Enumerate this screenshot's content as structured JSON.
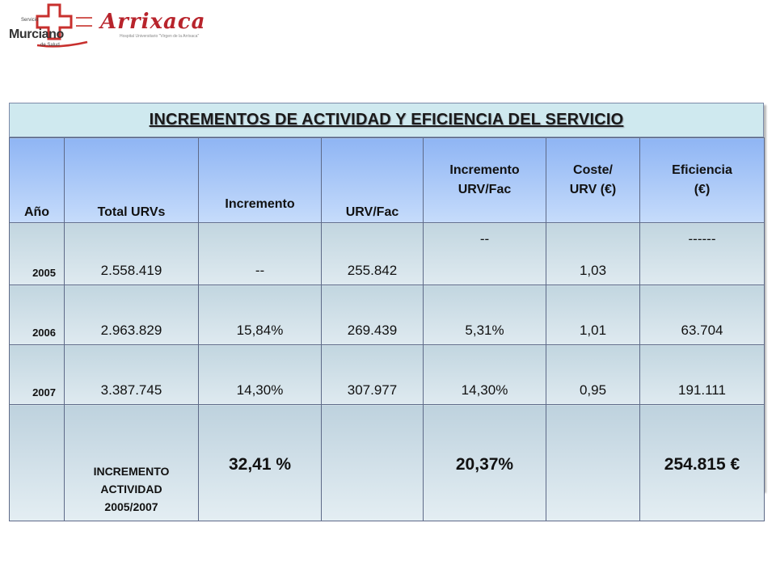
{
  "logos": {
    "sms": {
      "line1": "Servicio",
      "line2": "Murciano",
      "line3": "de Salud",
      "prefix": "Servicio",
      "accent": "#c8302e"
    },
    "arrixaca": {
      "name": "Arrixaca",
      "subtitle": "Hospital Universitario \"Virgen de la Arrixaca\"",
      "accent": "#b8242c"
    }
  },
  "table": {
    "title": "INCREMENTOS DE ACTIVIDAD Y EFICIENCIA DEL SERVICIO",
    "headers": [
      {
        "line1": "Año",
        "line2": ""
      },
      {
        "line1": "Total URVs",
        "line2": ""
      },
      {
        "line1": "Incremento",
        "line2": ""
      },
      {
        "line1": "URV/Fac",
        "line2": ""
      },
      {
        "line1": "Incremento",
        "line2": "URV/Fac"
      },
      {
        "line1": "Coste/",
        "line2": "URV (€)"
      },
      {
        "line1": "Eficiencia",
        "line2": "(€)"
      }
    ],
    "rows": [
      {
        "year": "2005",
        "total_urvs": "2.558.419",
        "incremento": "--",
        "urv_fac": "255.842",
        "incremento_urv_fac": "--",
        "coste_urv": "1,03",
        "eficiencia": "------"
      },
      {
        "year": "2006",
        "total_urvs": "2.963.829",
        "incremento": "15,84%",
        "urv_fac": "269.439",
        "incremento_urv_fac": "5,31%",
        "coste_urv": "1,01",
        "eficiencia": "63.704"
      },
      {
        "year": "2007",
        "total_urvs": "3.387.745",
        "incremento": "14,30%",
        "urv_fac": "307.977",
        "incremento_urv_fac": "14,30%",
        "coste_urv": "0,95",
        "eficiencia": "191.111"
      }
    ],
    "summary": {
      "label_line1": "INCREMENTO",
      "label_line2": "ACTIVIDAD",
      "label_line3": "2005/2007",
      "incremento": "32,41 %",
      "incremento_urv_fac": "20,37%",
      "eficiencia": "254.815 €"
    },
    "colors": {
      "title_bg": "#cfe9ef",
      "header_top": "#8fb5f4",
      "header_bottom": "#c6dcfb",
      "cell_bg": "#d4e3ea",
      "border": "#5e6a88"
    }
  }
}
